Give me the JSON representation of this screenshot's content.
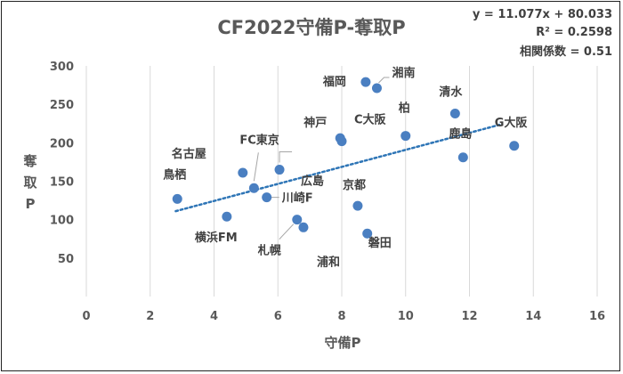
{
  "chart_data": {
    "type": "scatter",
    "title": "CF2022守備P-奪取P",
    "xlabel": "守備P",
    "ylabel": "奪取P",
    "xlim": [
      0,
      16
    ],
    "ylim": [
      0,
      300
    ],
    "xticks": [
      "0",
      "2",
      "4",
      "6",
      "8",
      "10",
      "12",
      "14",
      "16"
    ],
    "yticks": [
      "50",
      "100",
      "150",
      "200",
      "250",
      "300"
    ],
    "grid": "vertical",
    "marker_color": "#4a7fc1",
    "trend_color": "#2e75b6",
    "trendline": {
      "slope": 11.077,
      "intercept": 80.033,
      "x_range": [
        2.8,
        13.0
      ],
      "equation": "y = 11.077x + 80.033",
      "r2": "R² = 0.2598",
      "corr": "相関係数 = 0.51"
    },
    "points": [
      {
        "name": "鳥栖",
        "x": 2.85,
        "y": 127
      },
      {
        "name": "名古屋",
        "x": 4.9,
        "y": 161
      },
      {
        "name": "横浜FM",
        "x": 4.4,
        "y": 104
      },
      {
        "name": "FC東京",
        "x": 5.25,
        "y": 141
      },
      {
        "name": "川崎F",
        "x": 5.65,
        "y": 129
      },
      {
        "name": "広島",
        "x": 6.05,
        "y": 165
      },
      {
        "name": "札幌",
        "x": 6.6,
        "y": 100
      },
      {
        "name": "浦和",
        "x": 6.8,
        "y": 90
      },
      {
        "name": "神戸",
        "x": 7.95,
        "y": 206
      },
      {
        "name": "C大阪",
        "x": 8.0,
        "y": 202
      },
      {
        "name": "京都",
        "x": 8.5,
        "y": 118
      },
      {
        "name": "磐田",
        "x": 8.8,
        "y": 82
      },
      {
        "name": "福岡",
        "x": 8.75,
        "y": 279
      },
      {
        "name": "湘南",
        "x": 9.1,
        "y": 271
      },
      {
        "name": "柏",
        "x": 10.0,
        "y": 209
      },
      {
        "name": "清水",
        "x": 11.55,
        "y": 238
      },
      {
        "name": "鹿島",
        "x": 11.8,
        "y": 181
      },
      {
        "name": "G大阪",
        "x": 13.4,
        "y": 196
      }
    ]
  }
}
